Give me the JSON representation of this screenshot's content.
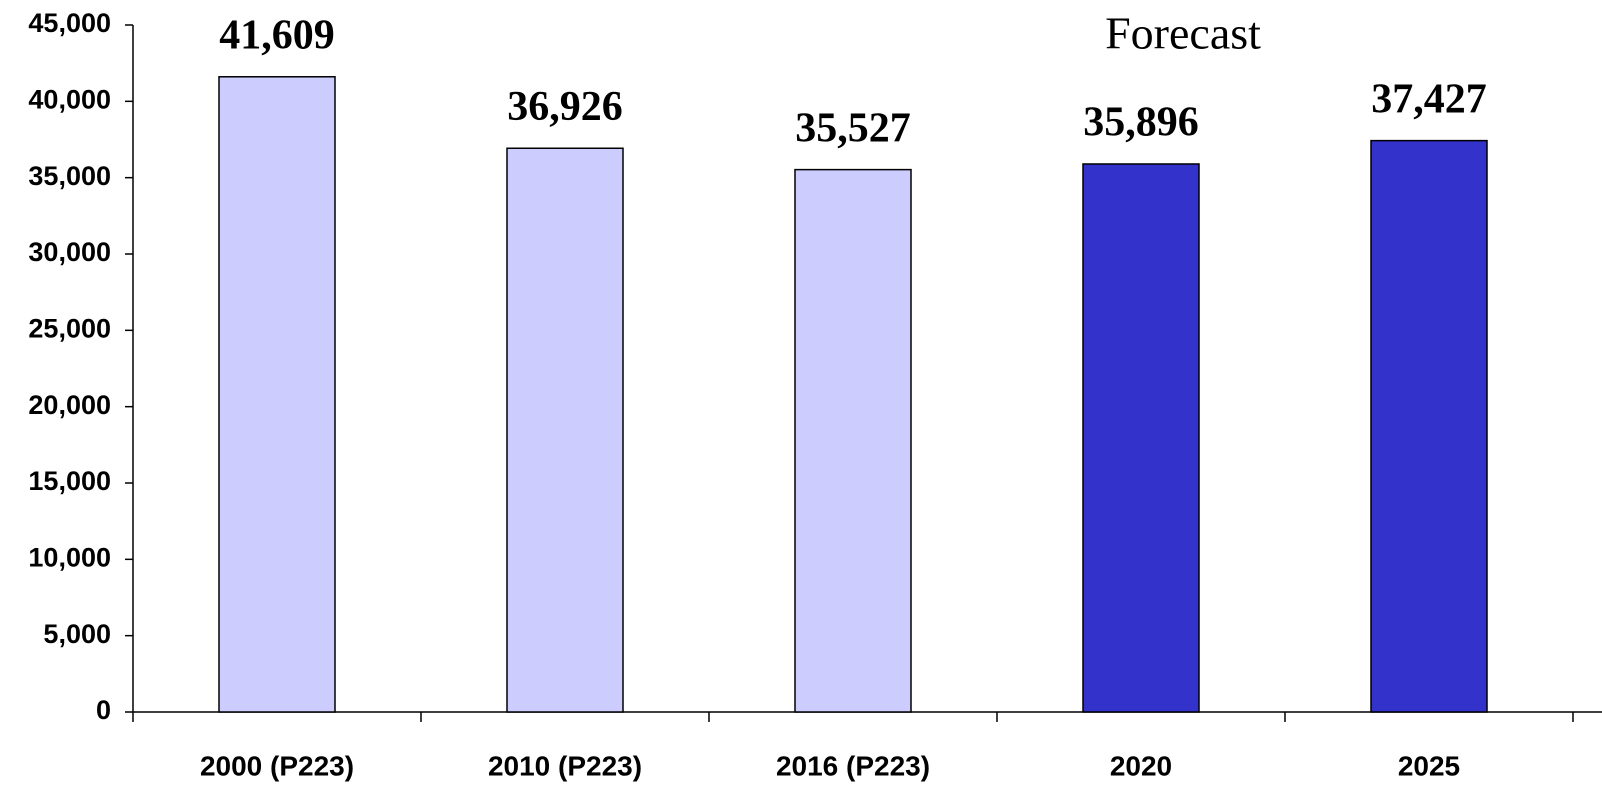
{
  "chart_data": {
    "type": "bar",
    "annotation": "Forecast",
    "categories": [
      "2000 (P223)",
      "2010 (P223)",
      "2016 (P223)",
      "2020",
      "2025"
    ],
    "values": [
      41609,
      36926,
      35527,
      35896,
      37427
    ],
    "value_labels": [
      "41,609",
      "36,926",
      "35,527",
      "35,896",
      "37,427"
    ],
    "colors": [
      "#ccccff",
      "#ccccff",
      "#ccccff",
      "#3333cc",
      "#3333cc"
    ],
    "ylim": [
      0,
      45000
    ],
    "yticks": [
      0,
      {
        "value": 5000,
        "label": "5,000"
      },
      {
        "value": 10000,
        "label": "10,000"
      },
      {
        "value": 15000,
        "label": "15,000"
      },
      {
        "value": 20000,
        "label": "20,000"
      },
      {
        "value": 25000,
        "label": "25,000"
      },
      {
        "value": 30000,
        "label": "30,000"
      },
      {
        "value": 35000,
        "label": "35,000"
      },
      {
        "value": 40000,
        "label": "40,000"
      },
      {
        "value": 45000,
        "label": "45,000"
      }
    ],
    "grid": false
  }
}
